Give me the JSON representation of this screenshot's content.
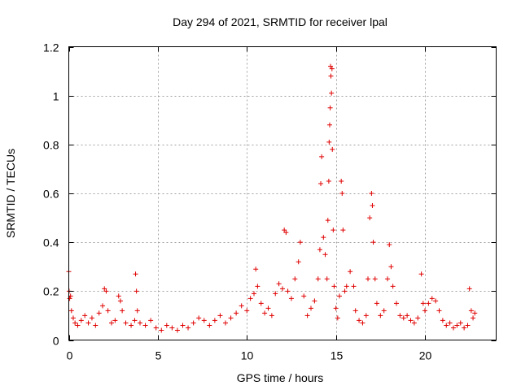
{
  "chart_data": {
    "type": "scatter",
    "title": "Day 294 of 2021, SRMTID for receiver lpal",
    "xlabel": "GPS time / hours",
    "ylabel": "SRMTID / TECUs",
    "xlim": [
      0,
      24
    ],
    "ylim": [
      0,
      1.2
    ],
    "xticks": [
      0,
      5,
      10,
      15,
      20
    ],
    "xtick_labels": [
      "0",
      "5",
      "10",
      "15",
      "20"
    ],
    "yticks": [
      0,
      0.2,
      0.4,
      0.6,
      0.8,
      1.0,
      1.2
    ],
    "ytick_labels": [
      "0",
      "0.2",
      "0.4",
      "0.6",
      "0.8",
      "1",
      "1.2"
    ],
    "grid": true,
    "marker": "+",
    "series": [
      {
        "name": "SRMTID",
        "color": "#e00000",
        "points": [
          [
            0.0,
            0.28
          ],
          [
            0.02,
            0.2
          ],
          [
            0.05,
            0.17
          ],
          [
            0.1,
            0.18
          ],
          [
            0.15,
            0.12
          ],
          [
            0.25,
            0.09
          ],
          [
            0.35,
            0.07
          ],
          [
            0.5,
            0.06
          ],
          [
            0.7,
            0.08
          ],
          [
            0.9,
            0.1
          ],
          [
            1.1,
            0.07
          ],
          [
            1.3,
            0.09
          ],
          [
            1.5,
            0.06
          ],
          [
            1.7,
            0.11
          ],
          [
            1.9,
            0.14
          ],
          [
            2.0,
            0.21
          ],
          [
            2.1,
            0.2
          ],
          [
            2.2,
            0.12
          ],
          [
            2.4,
            0.07
          ],
          [
            2.6,
            0.08
          ],
          [
            2.8,
            0.18
          ],
          [
            2.9,
            0.16
          ],
          [
            3.0,
            0.12
          ],
          [
            3.2,
            0.07
          ],
          [
            3.5,
            0.06
          ],
          [
            3.7,
            0.08
          ],
          [
            3.75,
            0.27
          ],
          [
            3.8,
            0.2
          ],
          [
            3.85,
            0.12
          ],
          [
            4.0,
            0.07
          ],
          [
            4.3,
            0.06
          ],
          [
            4.6,
            0.08
          ],
          [
            4.9,
            0.05
          ],
          [
            5.2,
            0.04
          ],
          [
            5.5,
            0.06
          ],
          [
            5.8,
            0.05
          ],
          [
            6.1,
            0.04
          ],
          [
            6.4,
            0.06
          ],
          [
            6.7,
            0.05
          ],
          [
            7.0,
            0.07
          ],
          [
            7.3,
            0.09
          ],
          [
            7.6,
            0.08
          ],
          [
            7.9,
            0.06
          ],
          [
            8.2,
            0.08
          ],
          [
            8.5,
            0.1
          ],
          [
            8.8,
            0.07
          ],
          [
            9.1,
            0.09
          ],
          [
            9.4,
            0.11
          ],
          [
            9.7,
            0.14
          ],
          [
            10.0,
            0.12
          ],
          [
            10.2,
            0.17
          ],
          [
            10.4,
            0.19
          ],
          [
            10.5,
            0.29
          ],
          [
            10.6,
            0.22
          ],
          [
            10.8,
            0.15
          ],
          [
            11.0,
            0.11
          ],
          [
            11.2,
            0.13
          ],
          [
            11.4,
            0.1
          ],
          [
            11.6,
            0.19
          ],
          [
            11.8,
            0.23
          ],
          [
            12.0,
            0.21
          ],
          [
            12.1,
            0.45
          ],
          [
            12.2,
            0.44
          ],
          [
            12.3,
            0.2
          ],
          [
            12.5,
            0.17
          ],
          [
            12.7,
            0.25
          ],
          [
            12.9,
            0.32
          ],
          [
            13.0,
            0.4
          ],
          [
            13.2,
            0.18
          ],
          [
            13.4,
            0.1
          ],
          [
            13.6,
            0.13
          ],
          [
            13.8,
            0.16
          ],
          [
            14.0,
            0.25
          ],
          [
            14.1,
            0.37
          ],
          [
            14.15,
            0.64
          ],
          [
            14.2,
            0.75
          ],
          [
            14.3,
            0.42
          ],
          [
            14.4,
            0.35
          ],
          [
            14.5,
            0.25
          ],
          [
            14.55,
            0.49
          ],
          [
            14.6,
            0.65
          ],
          [
            14.62,
            0.81
          ],
          [
            14.65,
            0.88
          ],
          [
            14.68,
            0.95
          ],
          [
            14.7,
            1.12
          ],
          [
            14.72,
            1.08
          ],
          [
            14.75,
            1.01
          ],
          [
            14.78,
            1.11
          ],
          [
            14.8,
            0.78
          ],
          [
            14.85,
            0.45
          ],
          [
            14.9,
            0.22
          ],
          [
            15.0,
            0.13
          ],
          [
            15.1,
            0.09
          ],
          [
            15.2,
            0.18
          ],
          [
            15.3,
            0.65
          ],
          [
            15.35,
            0.6
          ],
          [
            15.4,
            0.45
          ],
          [
            15.5,
            0.2
          ],
          [
            15.6,
            0.22
          ],
          [
            15.8,
            0.28
          ],
          [
            16.0,
            0.22
          ],
          [
            16.1,
            0.12
          ],
          [
            16.3,
            0.08
          ],
          [
            16.5,
            0.07
          ],
          [
            16.7,
            0.1
          ],
          [
            16.8,
            0.25
          ],
          [
            16.9,
            0.5
          ],
          [
            17.0,
            0.6
          ],
          [
            17.05,
            0.55
          ],
          [
            17.1,
            0.4
          ],
          [
            17.2,
            0.25
          ],
          [
            17.3,
            0.15
          ],
          [
            17.5,
            0.1
          ],
          [
            17.7,
            0.12
          ],
          [
            17.9,
            0.25
          ],
          [
            18.0,
            0.39
          ],
          [
            18.1,
            0.3
          ],
          [
            18.2,
            0.22
          ],
          [
            18.4,
            0.15
          ],
          [
            18.6,
            0.1
          ],
          [
            18.8,
            0.09
          ],
          [
            19.0,
            0.1
          ],
          [
            19.2,
            0.08
          ],
          [
            19.4,
            0.07
          ],
          [
            19.6,
            0.09
          ],
          [
            19.8,
            0.27
          ],
          [
            19.9,
            0.15
          ],
          [
            20.0,
            0.12
          ],
          [
            20.2,
            0.15
          ],
          [
            20.4,
            0.17
          ],
          [
            20.6,
            0.16
          ],
          [
            20.8,
            0.12
          ],
          [
            21.0,
            0.08
          ],
          [
            21.2,
            0.06
          ],
          [
            21.4,
            0.07
          ],
          [
            21.6,
            0.05
          ],
          [
            21.8,
            0.06
          ],
          [
            22.0,
            0.07
          ],
          [
            22.2,
            0.05
          ],
          [
            22.4,
            0.06
          ],
          [
            22.5,
            0.21
          ],
          [
            22.6,
            0.12
          ],
          [
            22.7,
            0.09
          ],
          [
            22.8,
            0.11
          ]
        ]
      }
    ]
  }
}
